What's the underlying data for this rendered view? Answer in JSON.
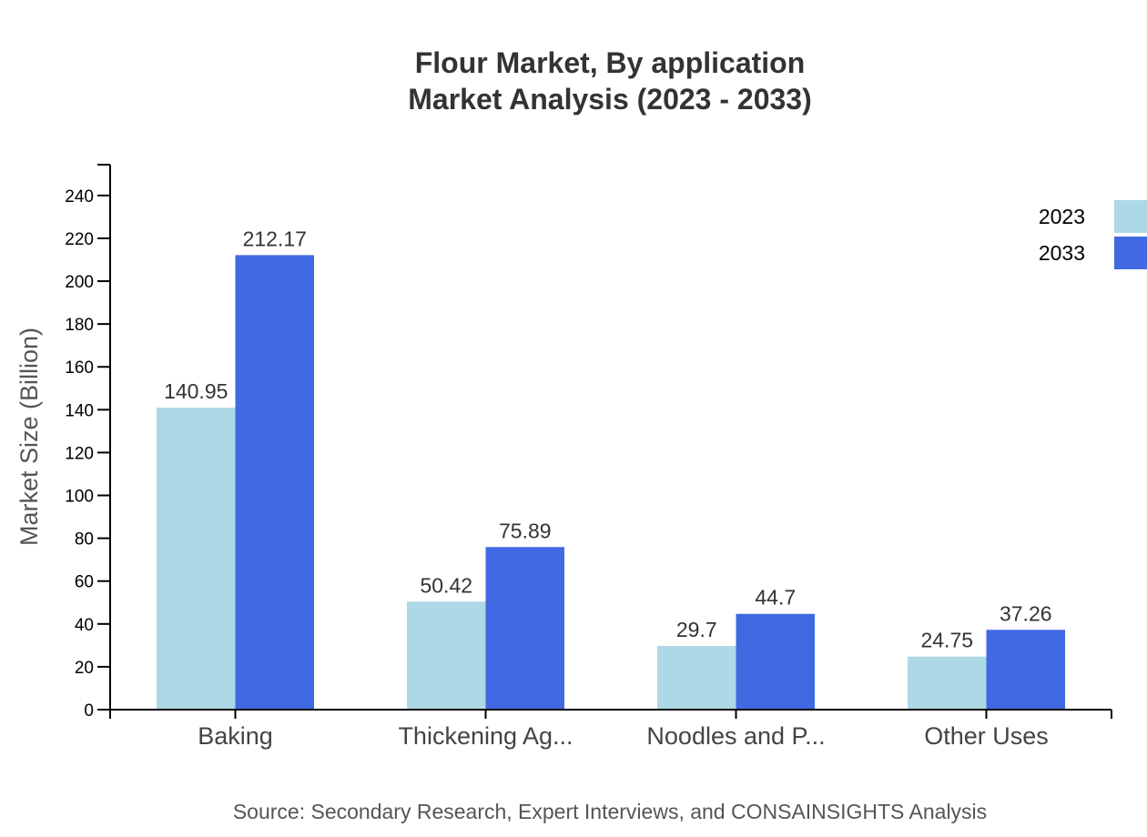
{
  "chart_data": {
    "type": "bar",
    "title": "Flour Market, By application",
    "subtitle": "Market Analysis (2023 - 2033)",
    "ylabel": "Market Size (Billion)",
    "xlabel": "",
    "source": "Source: Secondary Research, Expert Interviews, and CONSAINSIGHTS Analysis",
    "categories": [
      "Baking",
      "Thickening Ag...",
      "Noodles and P...",
      "Other Uses"
    ],
    "series": [
      {
        "name": "2023",
        "color": "#add8e6",
        "values": [
          140.95,
          50.42,
          29.7,
          24.75
        ]
      },
      {
        "name": "2033",
        "color": "#4169e1",
        "values": [
          212.17,
          75.89,
          44.7,
          37.26
        ]
      }
    ],
    "ylim": [
      0,
      254
    ],
    "yticks": [
      0,
      20,
      40,
      60,
      80,
      100,
      120,
      140,
      160,
      180,
      200,
      220,
      240
    ],
    "grid": false,
    "legend": "top-right"
  }
}
